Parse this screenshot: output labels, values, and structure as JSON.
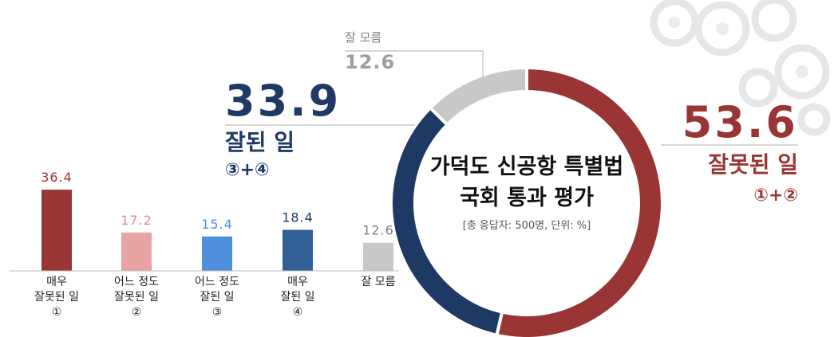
{
  "chart_data": [
    {
      "type": "pie",
      "donut": true,
      "title": "가덕도 신공항 특별법",
      "subtitle": "국회 통과 평가",
      "note": "[총 응답자: 500명, 단위: %]",
      "slices": [
        {
          "label": "잘못된 일",
          "sub": "①+②",
          "value": 53.6,
          "color": "#9a3535"
        },
        {
          "label": "잘된 일",
          "sub": "③+④",
          "value": 33.9,
          "color": "#1e3a64"
        },
        {
          "label": "잘 모름",
          "sub": "",
          "value": 12.6,
          "color": "#c8c8c8"
        }
      ]
    },
    {
      "type": "bar",
      "categories": [
        {
          "line1": "매우",
          "line2": "잘못된 일",
          "num": "①"
        },
        {
          "line1": "어느 정도",
          "line2": "잘못된 일",
          "num": "②"
        },
        {
          "line1": "어느 정도",
          "line2": "잘된 일",
          "num": "③"
        },
        {
          "line1": "매우",
          "line2": "잘된 일",
          "num": "④"
        },
        {
          "line1": "잘 모름",
          "line2": "",
          "num": ""
        }
      ],
      "values": [
        36.4,
        17.2,
        15.4,
        18.4,
        12.6
      ],
      "colors": [
        "#9a3535",
        "#e8a3a3",
        "#4f8fdc",
        "#325f96",
        "#c8c8c8"
      ],
      "label_colors": [
        "#9a3535",
        "#e08c8c",
        "#4f8fdc",
        "#1e3a64",
        "#808080"
      ],
      "ylim": [
        0,
        40
      ]
    }
  ]
}
